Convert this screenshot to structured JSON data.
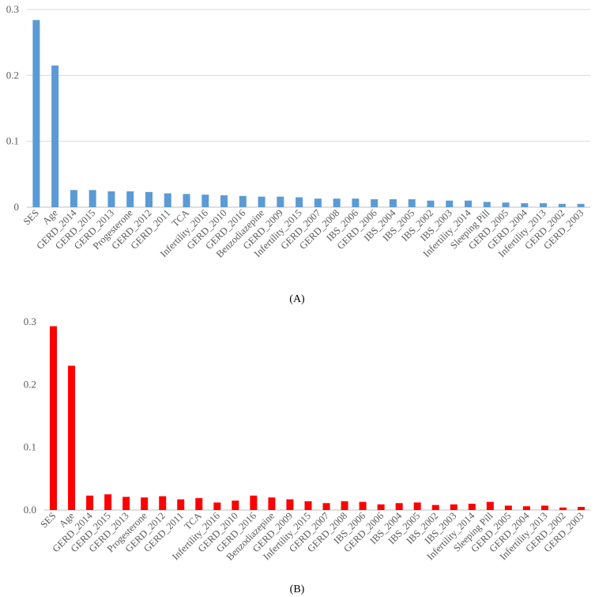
{
  "chart_data": [
    {
      "type": "bar",
      "panel_label": "A",
      "color": "#5b9bd5",
      "ylim": [
        0,
        0.3
      ],
      "yticks": [
        "0",
        "0.1",
        "0.2",
        "0.3"
      ],
      "grid": true,
      "categories": [
        "SES",
        "Age",
        "GERD_2014",
        "GERD_2015",
        "GERD_2013",
        "Progesterone",
        "GERD_2012",
        "GERD_2011",
        "TCA",
        "Infertility_2016",
        "GERD_2010",
        "GERD_2016",
        "Benzodiazepine",
        "GERD_2009",
        "Infertility_2015",
        "GERD_2007",
        "GERD_2008",
        "IBS_2006",
        "GERD_2006",
        "IBS_2004",
        "IBS_2005",
        "IBS_2002",
        "IBS_2003",
        "Infertility_2014",
        "Sleeping Pill",
        "GERD_2005",
        "GERD_2004",
        "Infertility_2013",
        "GERD_2002",
        "GERD_2003"
      ],
      "values": [
        0.284,
        0.215,
        0.026,
        0.026,
        0.024,
        0.024,
        0.023,
        0.021,
        0.02,
        0.019,
        0.018,
        0.017,
        0.016,
        0.016,
        0.015,
        0.013,
        0.013,
        0.013,
        0.012,
        0.012,
        0.012,
        0.01,
        0.01,
        0.01,
        0.008,
        0.007,
        0.006,
        0.006,
        0.005,
        0.005
      ]
    },
    {
      "type": "bar",
      "panel_label": "B",
      "color": "#ff0000",
      "ylim": [
        0,
        0.3
      ],
      "yticks": [
        "0.0",
        "0.1",
        "0.2",
        "0.3"
      ],
      "grid": false,
      "categories": [
        "SES",
        "Age",
        "GERD_2014",
        "GERD_2015",
        "GERD_2013",
        "Progesterone",
        "GERD_2012",
        "GERD_2011",
        "TCA",
        "Infertility_2016",
        "GERD_2010",
        "GERD_2016",
        "Benzodiazepine",
        "GERD_2009",
        "Infertility_2015",
        "GERD_2007",
        "GERD_2008",
        "IBS_2006",
        "GERD_2006",
        "IBS_2004",
        "IBS_2005",
        "IBS_2002",
        "IBS_2003",
        "Infertility_2014",
        "Sleeping Pill",
        "GERD_2005",
        "GERD_2004",
        "Infertility_2013",
        "GERD_2002",
        "GERD_2003"
      ],
      "values": [
        0.293,
        0.23,
        0.023,
        0.025,
        0.021,
        0.02,
        0.022,
        0.017,
        0.019,
        0.012,
        0.015,
        0.023,
        0.02,
        0.017,
        0.014,
        0.011,
        0.014,
        0.013,
        0.009,
        0.011,
        0.012,
        0.008,
        0.009,
        0.01,
        0.013,
        0.007,
        0.006,
        0.007,
        0.004,
        0.005
      ]
    }
  ]
}
